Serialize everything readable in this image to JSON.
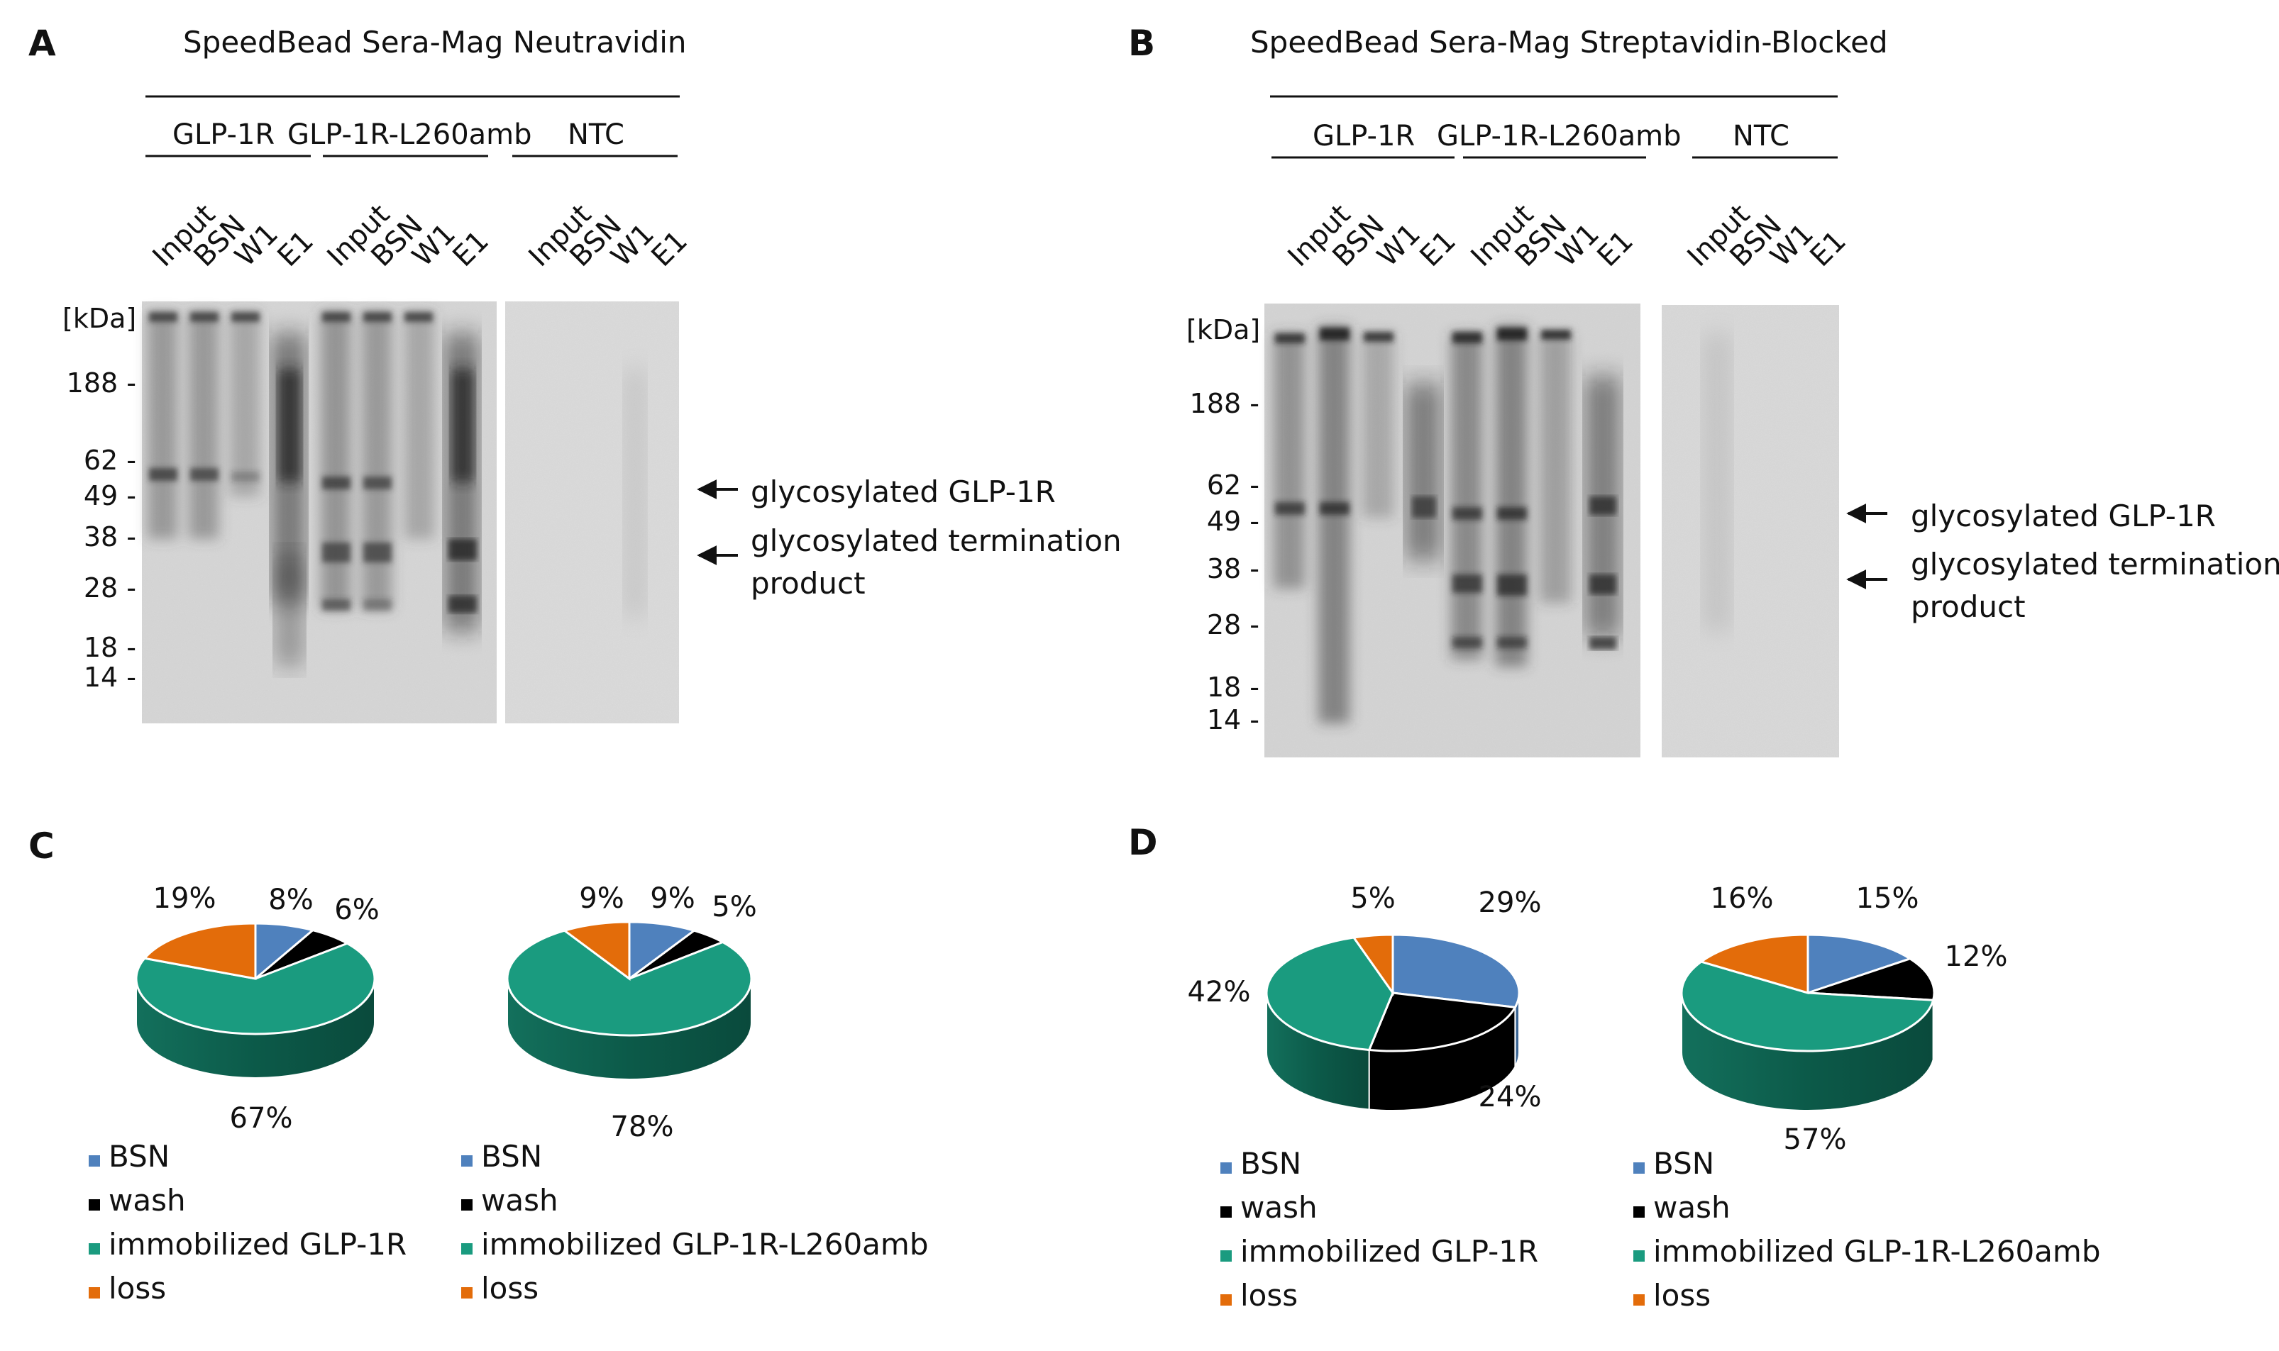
{
  "colors": {
    "BSN": "#4f81bd",
    "wash": "#000000",
    "immobilized": "#1a9b7f",
    "loss": "#e36c0a",
    "gel_bg": "#d8d8d8"
  },
  "panels": {
    "A": {
      "letter": "A",
      "title": "SpeedBead Sera-Mag Neutravidin",
      "groups": [
        "GLP-1R",
        "GLP-1R-L260amb",
        "NTC"
      ],
      "lanes": [
        "Input",
        "BSN",
        "W1",
        "E1",
        "Input",
        "BSN",
        "W1",
        "E1",
        "Input",
        "BSN",
        "W1",
        "E1"
      ],
      "kda_label": "[kDa]",
      "markers": [
        "188 -",
        "62 -",
        "49 -",
        "38 -",
        "28 -",
        "18 -",
        "14 -"
      ],
      "annotations": {
        "glyco": "glycosylated GLP-1R",
        "term_line1": "glycosylated termination",
        "term_line2": "product"
      }
    },
    "B": {
      "letter": "B",
      "title": "SpeedBead Sera-Mag Streptavidin-Blocked",
      "groups": [
        "GLP-1R",
        "GLP-1R-L260amb",
        "NTC"
      ],
      "lanes": [
        "Input",
        "BSN",
        "W1",
        "E1",
        "Input",
        "BSN",
        "W1",
        "E1",
        "Input",
        "BSN",
        "W1",
        "E1"
      ],
      "kda_label": "[kDa]",
      "markers": [
        "188 -",
        "62 -",
        "49 -",
        "38 -",
        "28 -",
        "18 -",
        "14 -"
      ],
      "annotations": {
        "glyco": "glycosylated GLP-1R",
        "term_line1": "glycosylated termination",
        "term_line2": "product"
      }
    },
    "C": {
      "letter": "C"
    },
    "D": {
      "letter": "D"
    }
  },
  "chart_data": [
    {
      "type": "pie",
      "panel": "C",
      "categories": [
        "BSN",
        "wash",
        "immobilized GLP-1R",
        "loss"
      ],
      "values": [
        8,
        6,
        67,
        19
      ],
      "labels": [
        "8%",
        "6%",
        "67%",
        "19%"
      ],
      "legend": [
        "BSN",
        "wash",
        "immobilized GLP-1R",
        "loss"
      ]
    },
    {
      "type": "pie",
      "panel": "C",
      "categories": [
        "BSN",
        "wash",
        "immobilized GLP-1R-L260amb",
        "loss"
      ],
      "values": [
        9,
        5,
        78,
        9
      ],
      "labels": [
        "9%",
        "5%",
        "78%",
        "9%"
      ],
      "legend": [
        "BSN",
        "wash",
        "immobilized GLP-1R-L260amb",
        "loss"
      ]
    },
    {
      "type": "pie",
      "panel": "D",
      "categories": [
        "BSN",
        "wash",
        "immobilized GLP-1R",
        "loss"
      ],
      "values": [
        29,
        24,
        42,
        5
      ],
      "labels": [
        "29%",
        "24%",
        "42%",
        "5%"
      ],
      "legend": [
        "BSN",
        "wash",
        "immobilized GLP-1R",
        "loss"
      ]
    },
    {
      "type": "pie",
      "panel": "D",
      "categories": [
        "BSN",
        "wash",
        "immobilized GLP-1R-L260amb",
        "loss"
      ],
      "values": [
        15,
        12,
        57,
        16
      ],
      "labels": [
        "15%",
        "12%",
        "57%",
        "16%"
      ],
      "legend": [
        "BSN",
        "wash",
        "immobilized GLP-1R-L260amb",
        "loss"
      ]
    }
  ]
}
